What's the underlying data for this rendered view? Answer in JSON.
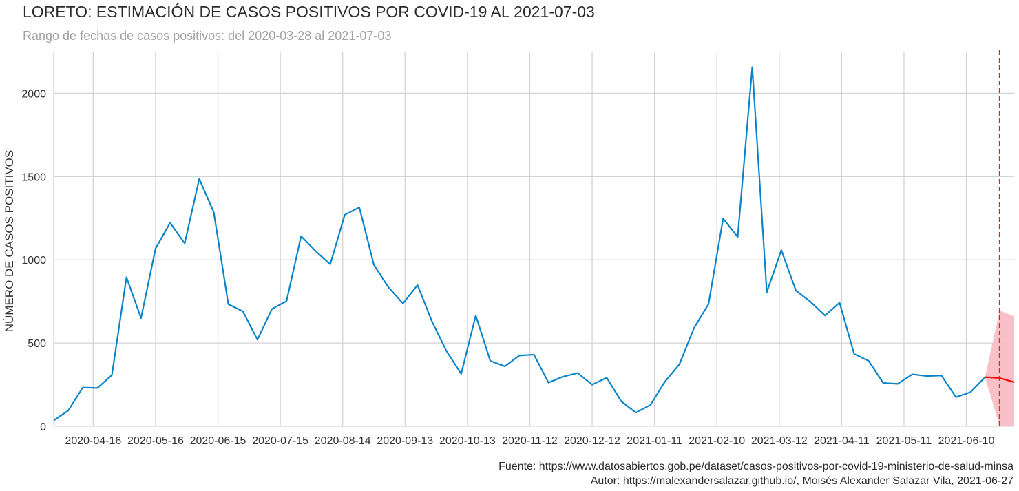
{
  "header": {
    "title": "LORETO: ESTIMACIÓN DE CASOS POSITIVOS POR COVID-19 AL 2021-07-03",
    "subtitle": "Rango de fechas de casos positivos: del 2020-03-28 al 2021-07-03"
  },
  "footer": {
    "source": "Fuente: https://www.datosabiertos.gob.pe/dataset/casos-positivos-por-covid-19-ministerio-de-salud-minsa",
    "author": "Autor: https://malexandersalazar.github.io/, Moisés Alexander Salazar Vila, 2021-06-27"
  },
  "colors": {
    "observed": "#0a84c8",
    "forecast": "#ff0000",
    "band": "#f8bdc4",
    "cutoff": "#d62728",
    "grid": "#d3d3d3"
  },
  "chart_data": {
    "type": "line",
    "ylabel": "NÚMERO DE CASOS POSITIVOS",
    "xlabel": "",
    "grid": true,
    "ylim": [
      0,
      2250
    ],
    "xlim": [
      "2020-03-28",
      "2021-07-03"
    ],
    "x_ticks": [
      "2020-04-16",
      "2020-05-16",
      "2020-06-15",
      "2020-07-15",
      "2020-08-14",
      "2020-09-13",
      "2020-10-13",
      "2020-11-12",
      "2020-12-12",
      "2021-01-11",
      "2021-02-10",
      "2021-03-12",
      "2021-04-11",
      "2021-05-11",
      "2021-06-10"
    ],
    "y_ticks": [
      0,
      500,
      1000,
      1500,
      2000
    ],
    "cutoff_date": "2021-06-26",
    "series": [
      {
        "name": "",
        "style": "observed",
        "points": [
          [
            "2020-03-28",
            35
          ],
          [
            "2020-04-04",
            95
          ],
          [
            "2020-04-11",
            233
          ],
          [
            "2020-04-18",
            230
          ],
          [
            "2020-04-25",
            308
          ],
          [
            "2020-05-02",
            895
          ],
          [
            "2020-05-09",
            650
          ],
          [
            "2020-05-16",
            1068
          ],
          [
            "2020-05-23",
            1222
          ],
          [
            "2020-05-30",
            1098
          ],
          [
            "2020-06-06",
            1486
          ],
          [
            "2020-06-13",
            1285
          ],
          [
            "2020-06-20",
            733
          ],
          [
            "2020-06-27",
            690
          ],
          [
            "2020-07-04",
            520
          ],
          [
            "2020-07-11",
            705
          ],
          [
            "2020-07-18",
            752
          ],
          [
            "2020-07-25",
            1142
          ],
          [
            "2020-08-01",
            1052
          ],
          [
            "2020-08-08",
            973
          ],
          [
            "2020-08-15",
            1270
          ],
          [
            "2020-08-22",
            1315
          ],
          [
            "2020-08-29",
            970
          ],
          [
            "2020-09-05",
            835
          ],
          [
            "2020-09-12",
            738
          ],
          [
            "2020-09-19",
            848
          ],
          [
            "2020-09-26",
            628
          ],
          [
            "2020-10-03",
            450
          ],
          [
            "2020-10-10",
            315
          ],
          [
            "2020-10-17",
            665
          ],
          [
            "2020-10-24",
            393
          ],
          [
            "2020-10-31",
            360
          ],
          [
            "2020-11-07",
            425
          ],
          [
            "2020-11-14",
            430
          ],
          [
            "2020-11-21",
            262
          ],
          [
            "2020-11-28",
            298
          ],
          [
            "2020-12-05",
            320
          ],
          [
            "2020-12-12",
            250
          ],
          [
            "2020-12-19",
            292
          ],
          [
            "2020-12-26",
            150
          ],
          [
            "2021-01-02",
            82
          ],
          [
            "2021-01-09",
            128
          ],
          [
            "2021-01-16",
            268
          ],
          [
            "2021-01-23",
            373
          ],
          [
            "2021-01-30",
            590
          ],
          [
            "2021-02-06",
            735
          ],
          [
            "2021-02-13",
            1248
          ],
          [
            "2021-02-20",
            1137
          ],
          [
            "2021-02-27",
            2157
          ],
          [
            "2021-03-06",
            805
          ],
          [
            "2021-03-13",
            1058
          ],
          [
            "2021-03-20",
            815
          ],
          [
            "2021-03-27",
            748
          ],
          [
            "2021-04-03",
            665
          ],
          [
            "2021-04-10",
            742
          ],
          [
            "2021-04-17",
            435
          ],
          [
            "2021-04-24",
            393
          ],
          [
            "2021-05-01",
            260
          ],
          [
            "2021-05-08",
            255
          ],
          [
            "2021-05-15",
            312
          ],
          [
            "2021-05-22",
            302
          ],
          [
            "2021-05-29",
            305
          ],
          [
            "2021-06-05",
            175
          ],
          [
            "2021-06-12",
            205
          ],
          [
            "2021-06-19",
            295
          ]
        ]
      },
      {
        "name": "",
        "style": "forecast",
        "points": [
          [
            "2021-06-19",
            295
          ],
          [
            "2021-06-26",
            290
          ],
          [
            "2021-07-03",
            265
          ]
        ],
        "lower": [
          295,
          0,
          0
        ],
        "upper": [
          295,
          695,
          660
        ]
      }
    ]
  }
}
